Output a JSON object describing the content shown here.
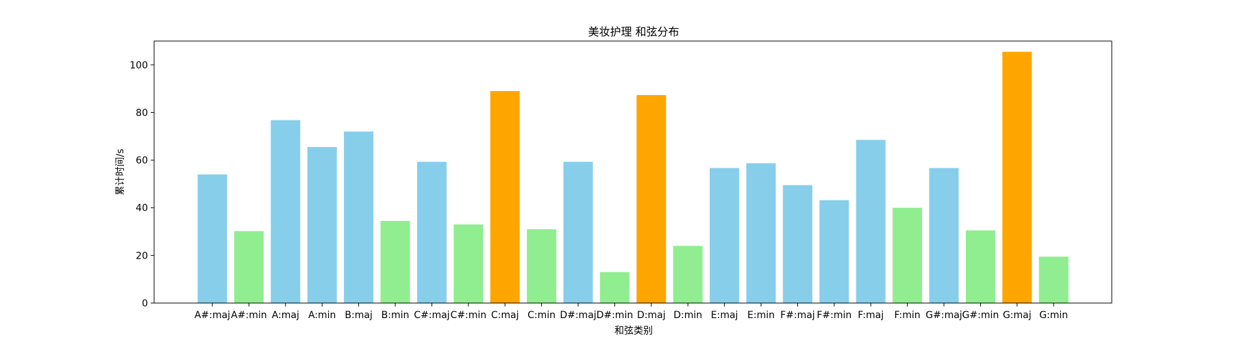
{
  "chart_data": {
    "type": "bar",
    "title": "美妆护理 和弦分布",
    "xlabel": "和弦类别",
    "ylabel": "累计时间/s",
    "ylim": [
      0,
      110
    ],
    "yticks": [
      0,
      20,
      40,
      60,
      80,
      100
    ],
    "grid": false,
    "categories": [
      "A#:maj",
      "A#:min",
      "A:maj",
      "A:min",
      "B:maj",
      "B:min",
      "C#:maj",
      "C#:min",
      "C:maj",
      "C:min",
      "D#:maj",
      "D#:min",
      "D:maj",
      "D:min",
      "E:maj",
      "E:min",
      "F#:maj",
      "F#:min",
      "F:maj",
      "F:min",
      "G#:maj",
      "G#:min",
      "G:maj",
      "G:min"
    ],
    "values": [
      54,
      30.2,
      76.8,
      65.5,
      72,
      34.5,
      59.3,
      33,
      89,
      31,
      59.3,
      13,
      87.3,
      24,
      56.7,
      58.7,
      49.5,
      43.2,
      68.5,
      40,
      56.7,
      30.5,
      105.5,
      19.5
    ],
    "colors": [
      "#87ceeb",
      "#90ee90",
      "#87ceeb",
      "#87ceeb",
      "#87ceeb",
      "#90ee90",
      "#87ceeb",
      "#90ee90",
      "#ffa500",
      "#90ee90",
      "#87ceeb",
      "#90ee90",
      "#ffa500",
      "#90ee90",
      "#87ceeb",
      "#87ceeb",
      "#87ceeb",
      "#87ceeb",
      "#87ceeb",
      "#90ee90",
      "#87ceeb",
      "#90ee90",
      "#ffa500",
      "#90ee90"
    ]
  }
}
